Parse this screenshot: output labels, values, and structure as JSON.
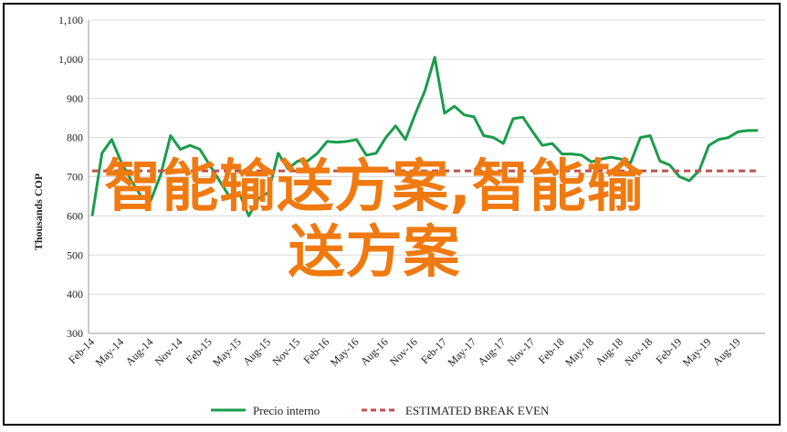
{
  "chart_data": {
    "type": "line",
    "ylabel": "Thousands COP",
    "ylim": [
      300,
      1100
    ],
    "yticks": [
      "300",
      "400",
      "500",
      "600",
      "700",
      "800",
      "900",
      "1,000",
      "1,100"
    ],
    "ytick_values": [
      300,
      400,
      500,
      600,
      700,
      800,
      900,
      1000,
      1100
    ],
    "x_tick_labels": [
      "Feb-14",
      "May-14",
      "Aug-14",
      "Nov-14",
      "Feb-15",
      "May-15",
      "Aug-15",
      "Nov-15",
      "Feb-16",
      "May-16",
      "Aug-16",
      "Nov-16",
      "Feb-17",
      "May-17",
      "Aug-17",
      "Nov-17",
      "Feb-18",
      "May-18",
      "Aug-18",
      "Nov-18",
      "Feb-19",
      "May-19",
      "Aug-19"
    ],
    "x": [
      "Feb-14",
      "Mar-14",
      "Apr-14",
      "May-14",
      "Jun-14",
      "Jul-14",
      "Aug-14",
      "Sep-14",
      "Oct-14",
      "Nov-14",
      "Dec-14",
      "Jan-15",
      "Feb-15",
      "Mar-15",
      "Apr-15",
      "May-15",
      "Jun-15",
      "Jul-15",
      "Aug-15",
      "Sep-15",
      "Oct-15",
      "Nov-15",
      "Dec-15",
      "Jan-16",
      "Feb-16",
      "Mar-16",
      "Apr-16",
      "May-16",
      "Jun-16",
      "Jul-16",
      "Aug-16",
      "Sep-16",
      "Oct-16",
      "Nov-16",
      "Dec-16",
      "Jan-17",
      "Feb-17",
      "Mar-17",
      "Apr-17",
      "May-17",
      "Jun-17",
      "Jul-17",
      "Aug-17",
      "Sep-17",
      "Oct-17",
      "Nov-17",
      "Dec-17",
      "Jan-18",
      "Feb-18",
      "Mar-18",
      "Apr-18",
      "May-18",
      "Jun-18",
      "Jul-18",
      "Aug-18",
      "Sep-18",
      "Oct-18",
      "Nov-18",
      "Dec-18",
      "Jan-19",
      "Feb-19",
      "Mar-19",
      "Apr-19",
      "May-19",
      "Jun-19",
      "Jul-19",
      "Aug-19",
      "Sep-19",
      "Oct-19"
    ],
    "series": [
      {
        "name": "Precio interno",
        "color": "#1a9c4a",
        "style": "solid",
        "values": [
          600,
          760,
          795,
          735,
          690,
          650,
          640,
          705,
          805,
          770,
          780,
          770,
          730,
          690,
          650,
          660,
          600,
          645,
          660,
          760,
          720,
          740,
          740,
          760,
          790,
          788,
          790,
          795,
          755,
          760,
          800,
          830,
          795,
          860,
          920,
          1005,
          862,
          880,
          858,
          853,
          805,
          800,
          785,
          848,
          852,
          815,
          780,
          785,
          758,
          758,
          755,
          738,
          745,
          750,
          745,
          735,
          800,
          805,
          740,
          730,
          700,
          690,
          715,
          780,
          795,
          800,
          815,
          818,
          818
        ]
      },
      {
        "name": "ESTIMATED BREAK EVEN",
        "color": "#c0504d",
        "style": "dashed",
        "values": [
          715,
          715,
          715,
          715,
          715,
          715,
          715,
          715,
          715,
          715,
          715,
          715,
          715,
          715,
          715,
          715,
          715,
          715,
          715,
          715,
          715,
          715,
          715,
          715,
          715,
          715,
          715,
          715,
          715,
          715,
          715,
          715,
          715,
          715,
          715,
          715,
          715,
          715,
          715,
          715,
          715,
          715,
          715,
          715,
          715,
          715,
          715,
          715,
          715,
          715,
          715,
          715,
          715,
          715,
          715,
          715,
          715,
          715,
          715,
          715,
          715,
          715,
          715,
          715,
          715,
          715,
          715,
          715,
          715
        ]
      }
    ],
    "grid": "horizontal",
    "legend": "bottom"
  },
  "overlay": {
    "line1": "智能输送方案,智能输",
    "line2": "送方案"
  }
}
